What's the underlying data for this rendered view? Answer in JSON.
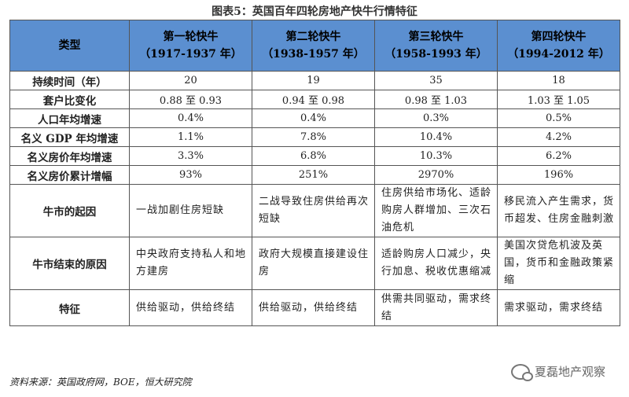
{
  "title": "图表5：英国百年四轮房地产快牛行情特征",
  "header": {
    "type_label": "类型",
    "waves": [
      {
        "name": "第一轮快牛",
        "period": "（1917-1937 年）"
      },
      {
        "name": "第二轮快牛",
        "period": "（1938-1957 年）"
      },
      {
        "name": "第三轮快牛",
        "period": "（1958-1993 年）"
      },
      {
        "name": "第四轮快牛",
        "period": "（1994-2012 年）"
      }
    ]
  },
  "rows": [
    {
      "label": "持续时间（年）",
      "cells": [
        "20",
        "19",
        "35",
        "18"
      ]
    },
    {
      "label": "套户比变化",
      "cells": [
        "0.88 至 0.93",
        "0.94 至 0.98",
        "0.98 至 1.03",
        "1.03 至 1.05"
      ]
    },
    {
      "label": "人口年均增速",
      "cells": [
        "0.4%",
        "0.4%",
        "0.3%",
        "0.5%"
      ]
    },
    {
      "label": "名义 GDP 年均增速",
      "cells": [
        "1.1%",
        "7.8%",
        "10.4%",
        "4.2%"
      ]
    },
    {
      "label": "名义房价年均增速",
      "cells": [
        "3.3%",
        "6.8%",
        "10.3%",
        "6.2%"
      ]
    },
    {
      "label": "名义房价累计增幅",
      "cells": [
        "93%",
        "251%",
        "2970%",
        "196%"
      ]
    },
    {
      "label": "牛市的起因",
      "cells": [
        "一战加剧住房短缺",
        "二战导致住房供给再次短缺",
        "住房供给市场化、适龄购房人群增加、三次石油危机",
        "移民流入产生需求，货币超发、住房金融刺激"
      ]
    },
    {
      "label": "牛市结束的原因",
      "cells": [
        "中央政府支持私人和地方建房",
        "政府大规模直接建设住房",
        "适龄购房人口减少，央行加息、税收优惠缩减",
        "美国次贷危机波及英国，货币和金融政策紧缩"
      ]
    },
    {
      "label": "特征",
      "cells": [
        "供给驱动，供给终结",
        "供给驱动，供给终结",
        "供需共同驱动，需求终结",
        "需求驱动，需求终结"
      ]
    }
  ],
  "source": "资料来源：英国政府网，BOE，恒大研究院",
  "watermark": "夏磊地产观察"
}
